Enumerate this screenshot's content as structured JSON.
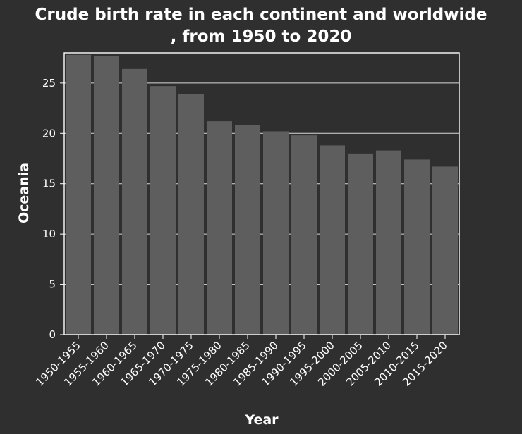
{
  "chart_data": {
    "type": "bar",
    "title_line1": "Crude birth rate in each continent and worldwide",
    "title_line2": ", from 1950 to 2020",
    "xlabel": "Year",
    "ylabel": "Oceania",
    "ylim": [
      0,
      28
    ],
    "yticks": [
      0,
      5,
      10,
      15,
      20,
      25
    ],
    "grid": "horizontal",
    "categories": [
      "1950-1955",
      "1955-1960",
      "1960-1965",
      "1965-1970",
      "1970-1975",
      "1975-1980",
      "1980-1985",
      "1985-1990",
      "1990-1995",
      "1995-2000",
      "2000-2005",
      "2005-2010",
      "2010-2015",
      "2015-2020"
    ],
    "values": [
      27.8,
      27.7,
      26.4,
      24.7,
      23.9,
      21.2,
      20.8,
      20.2,
      19.8,
      18.8,
      18.0,
      18.3,
      17.4,
      16.7
    ],
    "colors": {
      "background": "#2f2f2f",
      "bar": "#5e5e5e",
      "grid": "#d9d9d9",
      "text": "#ffffff"
    }
  }
}
